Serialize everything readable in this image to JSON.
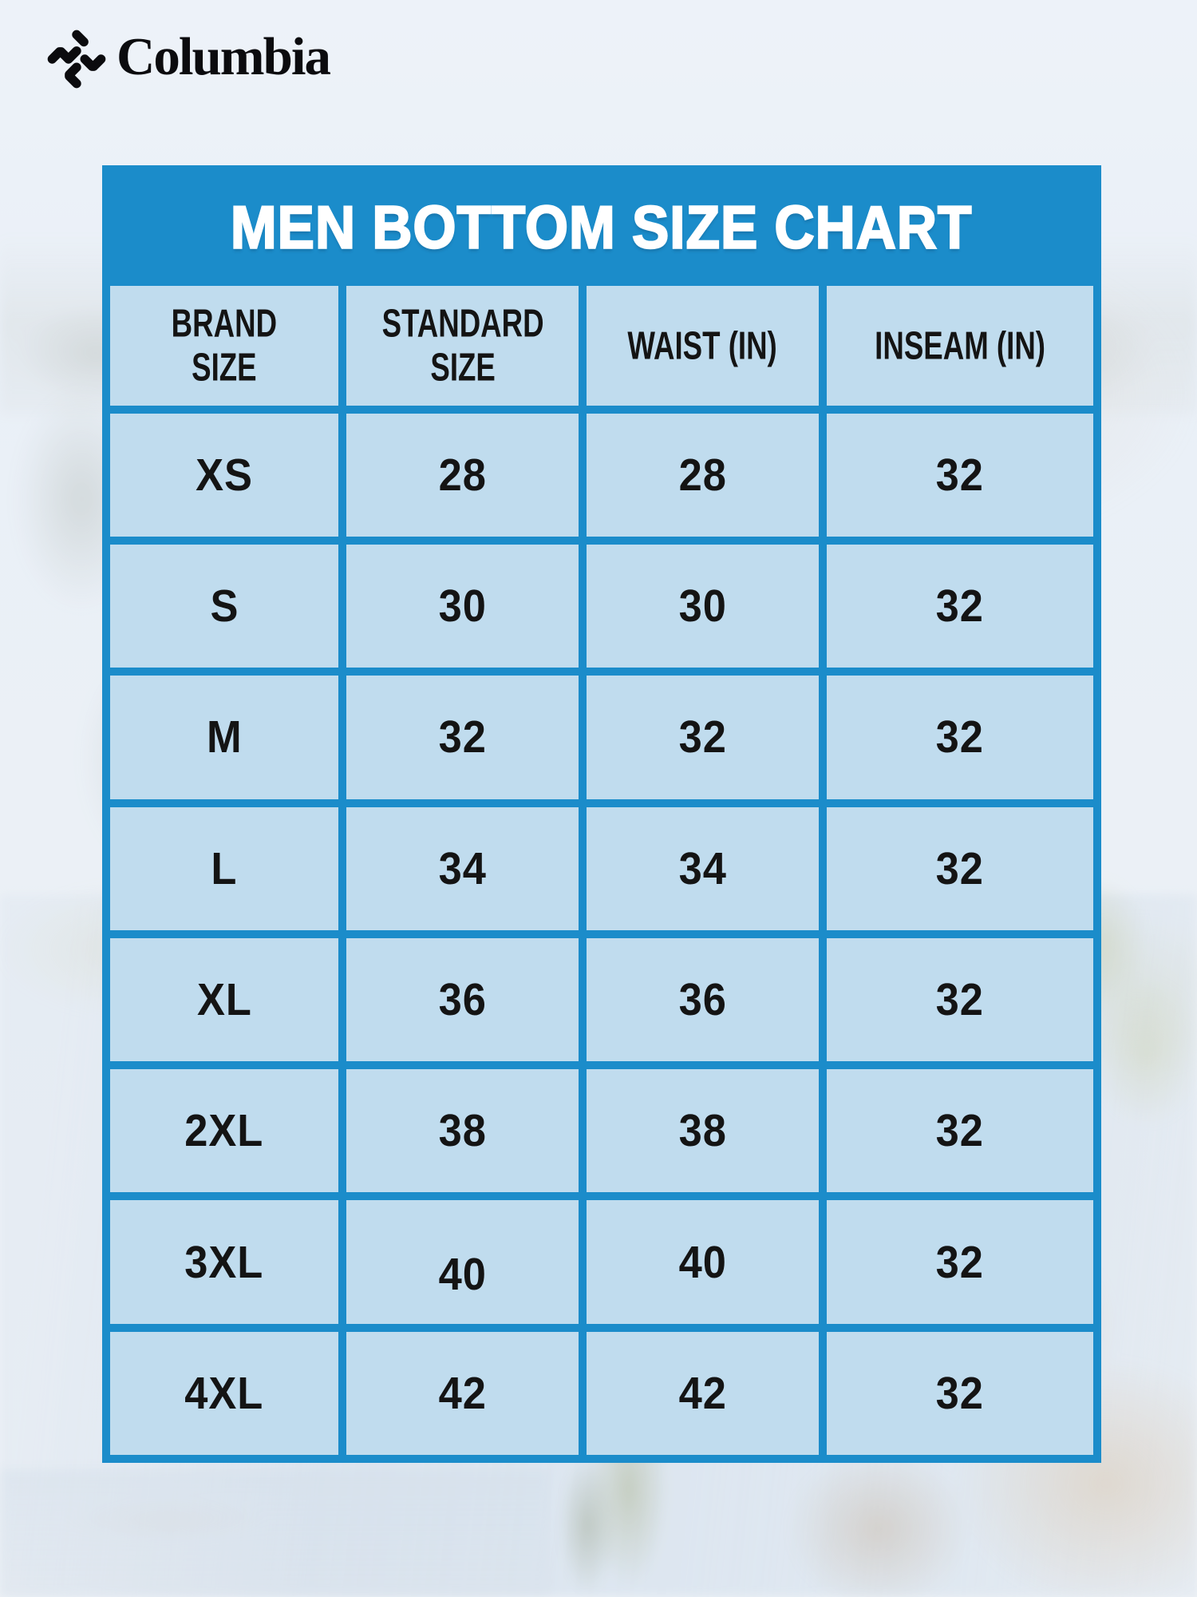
{
  "logo": {
    "brand": "Columbia"
  },
  "chart_data": {
    "type": "table",
    "title": "MEN BOTTOM SIZE CHART",
    "columns": [
      "BRAND SIZE",
      "STANDARD SIZE",
      "WAIST (IN)",
      "INSEAM (IN)"
    ],
    "columns_display": [
      "BRAND\nSIZE",
      "STANDARD\nSIZE",
      "WAIST (IN)",
      "INSEAM (IN)"
    ],
    "rows": [
      [
        "XS",
        "28",
        "28",
        "32"
      ],
      [
        "S",
        "30",
        "30",
        "32"
      ],
      [
        "M",
        "32",
        "32",
        "32"
      ],
      [
        "L",
        "34",
        "34",
        "32"
      ],
      [
        "XL",
        "36",
        "36",
        "32"
      ],
      [
        "2XL",
        "38",
        "38",
        "32"
      ],
      [
        "3XL",
        "40",
        "40",
        "32"
      ],
      [
        "4XL",
        "42",
        "42",
        "32"
      ]
    ]
  },
  "colors": {
    "accent_blue": "#1b8cca",
    "title_text": "#ffffff",
    "cell_text": "#141414",
    "logo_black": "#0b0b0e"
  }
}
